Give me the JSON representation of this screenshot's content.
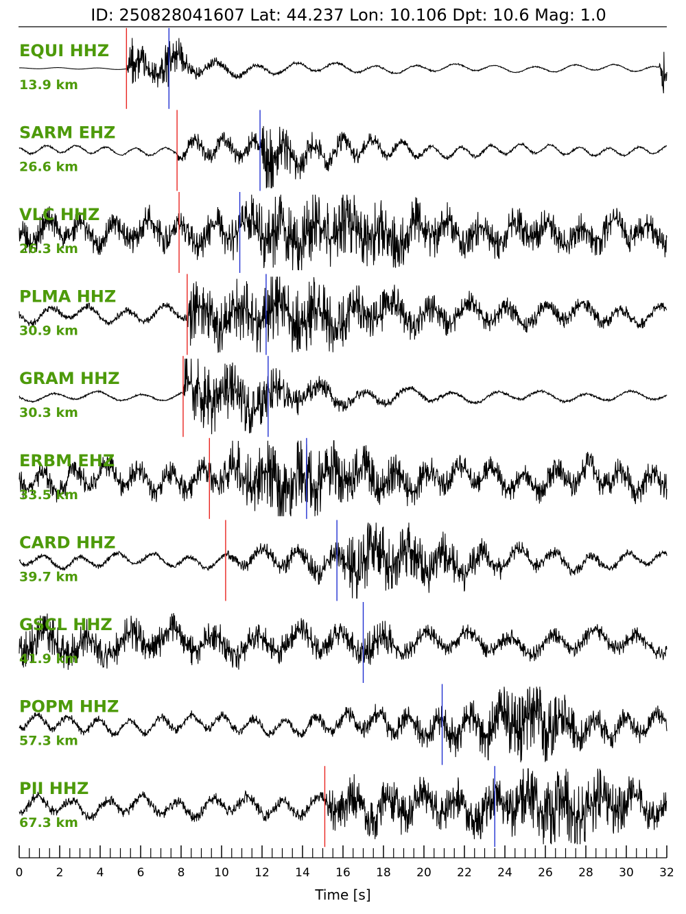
{
  "chart_data": {
    "type": "line",
    "title": "ID: 250828041607 Lat:  44.237 Lon:  10.106 Dpt:    10.6 Mag:   1.0",
    "xlabel": "Time [s]",
    "xlim": [
      0,
      32
    ],
    "x_ticks": [
      "0",
      "2",
      "4",
      "6",
      "8",
      "10",
      "12",
      "14",
      "16",
      "18",
      "20",
      "22",
      "24",
      "26",
      "28",
      "30",
      "32"
    ],
    "minor_tick_step": 0.5,
    "grid": false,
    "colors": {
      "trace": "#000000",
      "p_pick": "#e8231f",
      "s_pick": "#1f2fd0",
      "label": "#4d9a0a"
    },
    "series": [
      {
        "name": "EQUI HHZ",
        "distance": "13.9 km",
        "p_pick": 5.3,
        "s_pick": 7.4,
        "shape": [
          [
            0,
            0.02
          ],
          [
            5.3,
            0.03
          ],
          [
            5.4,
            0.9
          ],
          [
            6.5,
            0.55
          ],
          [
            7.4,
            0.8
          ],
          [
            8.5,
            0.45
          ],
          [
            10,
            0.3
          ],
          [
            13,
            0.2
          ],
          [
            18,
            0.15
          ],
          [
            24,
            0.12
          ],
          [
            31.6,
            0.12
          ],
          [
            31.8,
            0.9
          ],
          [
            32,
            0.5
          ]
        ]
      },
      {
        "name": "SARM EHZ",
        "distance": "26.6 km",
        "p_pick": 7.8,
        "s_pick": 11.9,
        "shape": [
          [
            0,
            0.15
          ],
          [
            7.8,
            0.15
          ],
          [
            7.9,
            0.45
          ],
          [
            11.9,
            0.5
          ],
          [
            12.1,
            1.0
          ],
          [
            14,
            0.6
          ],
          [
            17,
            0.45
          ],
          [
            20,
            0.25
          ],
          [
            26,
            0.18
          ],
          [
            32,
            0.15
          ]
        ]
      },
      {
        "name": "VLC HHZ",
        "distance": "26.3 km",
        "p_pick": 7.9,
        "s_pick": 10.9,
        "shape": [
          [
            0,
            0.6
          ],
          [
            7.9,
            0.6
          ],
          [
            8.0,
            0.6
          ],
          [
            10.9,
            0.75
          ],
          [
            12.5,
            1.0
          ],
          [
            17,
            0.9
          ],
          [
            22,
            0.65
          ],
          [
            32,
            0.6
          ]
        ]
      },
      {
        "name": "PLMA HHZ",
        "distance": "30.9 km",
        "p_pick": 8.3,
        "s_pick": 12.2,
        "shape": [
          [
            0,
            0.3
          ],
          [
            8.3,
            0.3
          ],
          [
            8.4,
            0.85
          ],
          [
            12.2,
            0.95
          ],
          [
            13,
            1.0
          ],
          [
            17,
            0.75
          ],
          [
            22,
            0.55
          ],
          [
            32,
            0.35
          ]
        ]
      },
      {
        "name": "GRAM HHZ",
        "distance": "30.3 km",
        "p_pick": 8.1,
        "s_pick": 12.3,
        "shape": [
          [
            0,
            0.15
          ],
          [
            8.1,
            0.15
          ],
          [
            8.2,
            1.0
          ],
          [
            12.3,
            0.75
          ],
          [
            14,
            0.55
          ],
          [
            17,
            0.35
          ],
          [
            22,
            0.2
          ],
          [
            32,
            0.15
          ]
        ]
      },
      {
        "name": "ERBM EHZ",
        "distance": "33.5 km",
        "p_pick": 9.4,
        "s_pick": 14.2,
        "shape": [
          [
            0,
            0.55
          ],
          [
            9.4,
            0.55
          ],
          [
            9.5,
            0.7
          ],
          [
            11.5,
            0.9
          ],
          [
            14.2,
            1.0
          ],
          [
            17,
            0.75
          ],
          [
            22,
            0.55
          ],
          [
            32,
            0.6
          ]
        ]
      },
      {
        "name": "CARD HHZ",
        "distance": "39.7 km",
        "p_pick": 10.2,
        "s_pick": 15.7,
        "shape": [
          [
            0,
            0.25
          ],
          [
            10.2,
            0.25
          ],
          [
            10.3,
            0.35
          ],
          [
            15.7,
            0.6
          ],
          [
            16.5,
            1.0
          ],
          [
            21,
            0.75
          ],
          [
            25,
            0.45
          ],
          [
            32,
            0.25
          ]
        ]
      },
      {
        "name": "GSCL HHZ",
        "distance": "41.9 km",
        "s_pick": 17.0,
        "shape": [
          [
            0,
            0.7
          ],
          [
            17.0,
            0.55
          ],
          [
            17.1,
            0.75
          ],
          [
            20,
            0.45
          ],
          [
            32,
            0.45
          ]
        ]
      },
      {
        "name": "POPM HHZ",
        "distance": "57.3 km",
        "s_pick": 20.9,
        "shape": [
          [
            0,
            0.3
          ],
          [
            14,
            0.35
          ],
          [
            20.9,
            0.65
          ],
          [
            25.5,
            1.0
          ],
          [
            28,
            0.6
          ],
          [
            32,
            0.45
          ]
        ]
      },
      {
        "name": "PII HHZ",
        "distance": "67.3 km",
        "p_pick": 15.1,
        "s_pick": 23.5,
        "shape": [
          [
            0,
            0.35
          ],
          [
            15.1,
            0.4
          ],
          [
            15.2,
            0.8
          ],
          [
            20,
            0.7
          ],
          [
            23.5,
            0.75
          ],
          [
            27,
            1.0
          ],
          [
            32,
            0.6
          ]
        ]
      }
    ]
  }
}
